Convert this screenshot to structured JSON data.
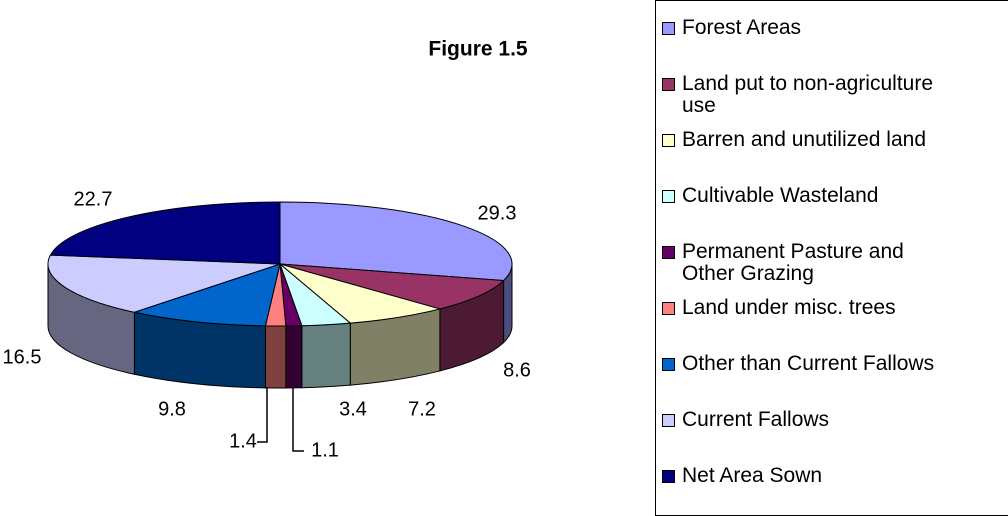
{
  "chart_data": {
    "type": "pie3d",
    "title": "Figure 1.5",
    "categories": [
      "Forest Areas",
      "Land put to non-agriculture use",
      "Barren and unutilized land",
      "Cultivable Wasteland",
      "Permanent Pasture and Other Grazing",
      "Land under misc. trees",
      "Other than Current Fallows",
      "Current Fallows",
      "Net Area Sown"
    ],
    "values": [
      29.3,
      8.6,
      7.2,
      3.4,
      1.1,
      1.4,
      9.8,
      16.5,
      22.7
    ],
    "colors": [
      "#9999ff",
      "#993366",
      "#ffffcc",
      "#ccffff",
      "#660066",
      "#ff8080",
      "#0066cc",
      "#ccccff",
      "#000080"
    ],
    "legend": "right"
  }
}
